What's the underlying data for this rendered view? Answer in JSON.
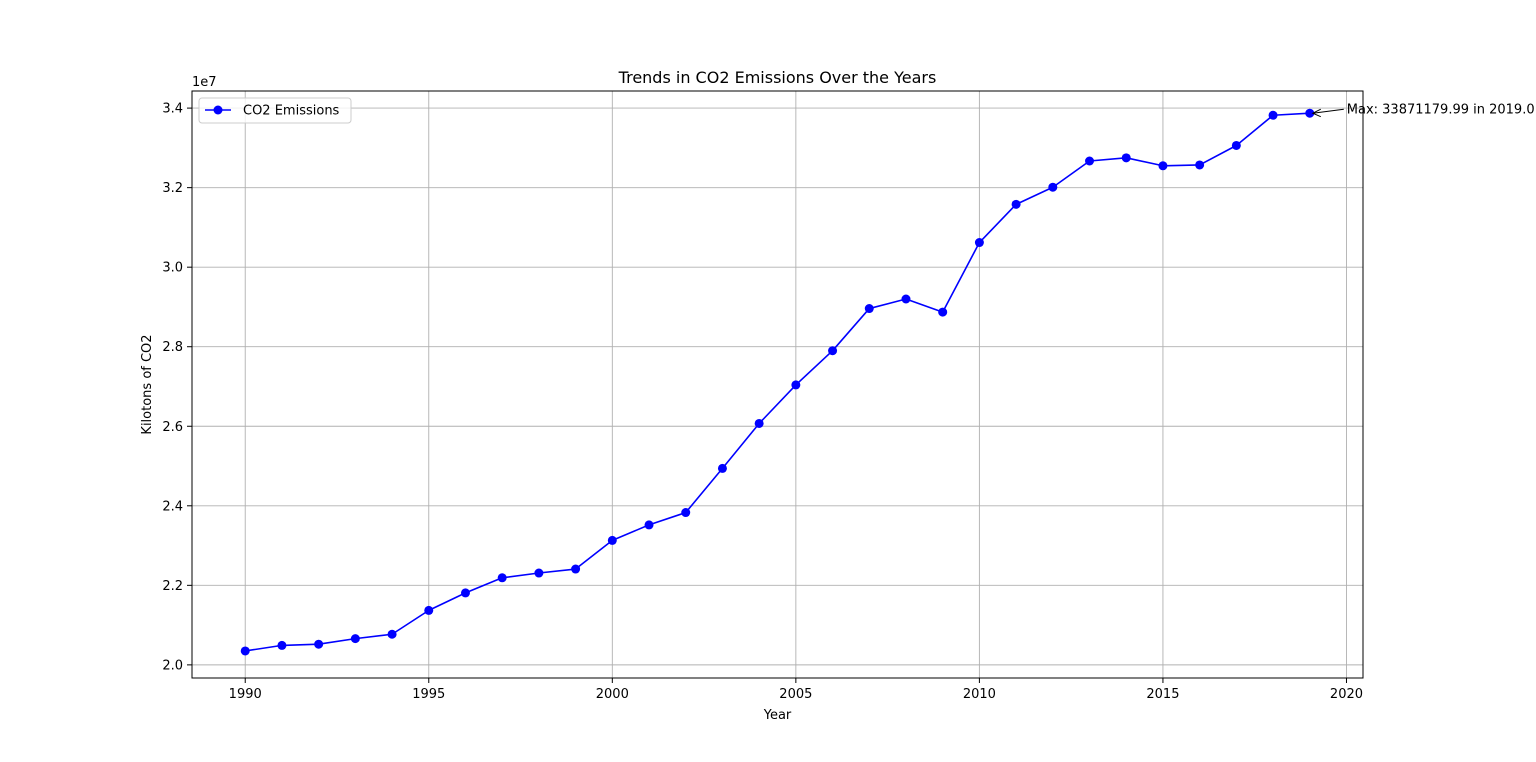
{
  "chart_data": {
    "type": "line",
    "title": "Trends in CO2 Emissions Over the Years",
    "xlabel": "Year",
    "ylabel": "Kilotons of CO2",
    "y_offset_label": "1e7",
    "xlim": [
      1988.55,
      2020.45
    ],
    "ylim": [
      19670000,
      34430000
    ],
    "x_ticks": [
      1990,
      1995,
      2000,
      2005,
      2010,
      2015,
      2020
    ],
    "y_ticks": [
      20000000,
      22000000,
      24000000,
      26000000,
      28000000,
      30000000,
      32000000,
      34000000
    ],
    "y_tick_labels": [
      "2.0",
      "2.2",
      "2.4",
      "2.6",
      "2.8",
      "3.0",
      "3.2",
      "3.4"
    ],
    "grid": true,
    "legend_position": "top-left",
    "series": [
      {
        "name": "CO2 Emissions",
        "color": "#0000ff",
        "marker": "circle",
        "x": [
          1990,
          1991,
          1992,
          1993,
          1994,
          1995,
          1996,
          1997,
          1998,
          1999,
          2000,
          2001,
          2002,
          2003,
          2004,
          2005,
          2006,
          2007,
          2008,
          2009,
          2010,
          2011,
          2012,
          2013,
          2014,
          2015,
          2016,
          2017,
          2018,
          2019
        ],
        "y": [
          20350000,
          20490000,
          20520000,
          20660000,
          20770000,
          21370000,
          21810000,
          22190000,
          22310000,
          22410000,
          23130000,
          23520000,
          23830000,
          24940000,
          26070000,
          27040000,
          27900000,
          28960000,
          29200000,
          28870000,
          30620000,
          31580000,
          32010000,
          32670000,
          32750000,
          32550000,
          32570000,
          33060000,
          33820000,
          33871179.99
        ]
      }
    ],
    "annotation": {
      "text": "Max: 33871179.99 in 2019.0",
      "x": 2019,
      "y": 33871179.99
    }
  }
}
